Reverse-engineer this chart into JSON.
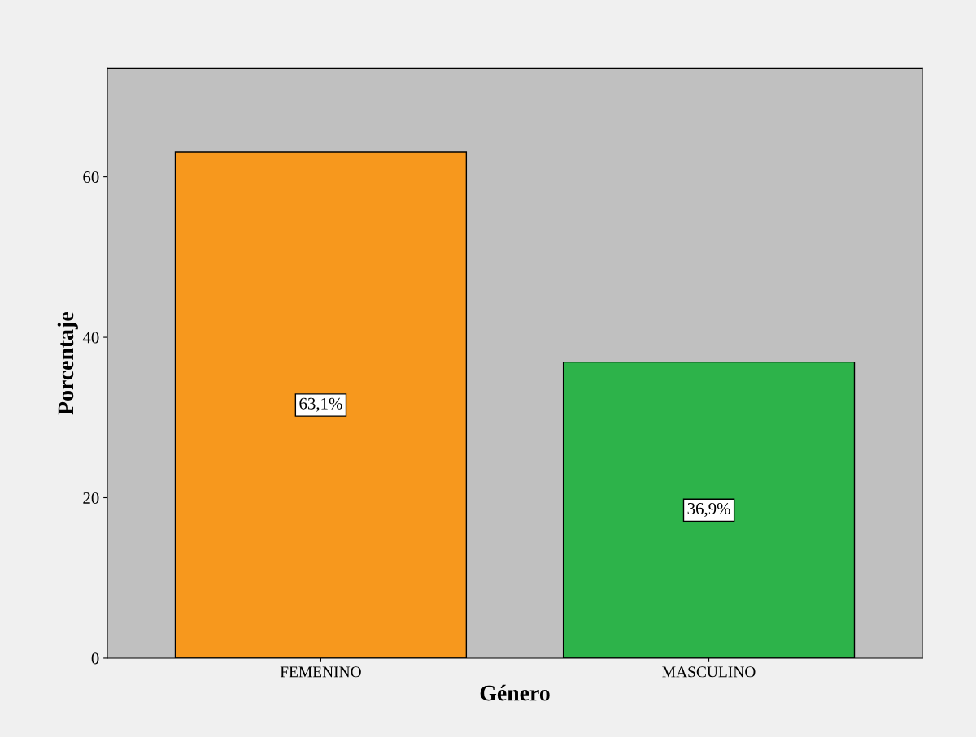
{
  "chart_data": {
    "type": "bar",
    "xlabel": "Género",
    "ylabel": "Porcentaje",
    "categories": [
      "FEMENINO",
      "MASCULINO"
    ],
    "values": [
      63.1,
      36.9
    ],
    "colors": [
      "#f7981d",
      "#2db34a"
    ],
    "value_labels": [
      "63,1%",
      "36,9%"
    ],
    "ylim": [
      0,
      73.5
    ],
    "yticks": [
      0,
      20,
      40,
      60
    ],
    "grid": false,
    "legend": false
  }
}
